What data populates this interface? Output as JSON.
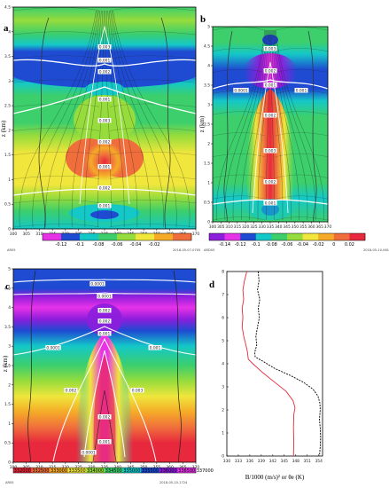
{
  "chart_data": [
    {
      "type": "heatmap",
      "panel_label": "a",
      "y_axis_label": "z (km)",
      "x_ticks": [
        "300",
        "305",
        "310",
        "315",
        "320",
        "325",
        "330",
        "335",
        "340",
        "345",
        "350",
        "355",
        "360",
        "365",
        "370"
      ],
      "y_ticks": [
        "0",
        "0.5",
        "1",
        "1.5",
        "2",
        "2.5",
        "3",
        "3.5",
        "4",
        "4.5"
      ],
      "ylim": [
        0,
        4.5
      ],
      "colorbar_ticks": [
        "-0.12",
        "-0.1",
        "-0.08",
        "-0.06",
        "-0.04",
        "-0.02"
      ],
      "colorbar_colors": [
        "#e832e8",
        "#1e4bd2",
        "#14c8c8",
        "#3ccf6c",
        "#96dc3c",
        "#f0e63c",
        "#f5aa28",
        "#f06e3c"
      ],
      "footer_left": "AR05",
      "footer_right": "2018-05-07-0705",
      "contour_labels": [
        "0.003",
        "0.001",
        "0.002",
        "0.001",
        "0.003",
        "0.002",
        "0.001",
        "0.002",
        "0.001"
      ]
    },
    {
      "type": "heatmap",
      "panel_label": "b",
      "y_axis_label": "z (km)",
      "x_ticks": [
        "300",
        "305",
        "310",
        "315",
        "320",
        "325",
        "330",
        "335",
        "340",
        "345",
        "350",
        "355",
        "360",
        "365",
        "370"
      ],
      "y_ticks": [
        "0",
        "0.5",
        "1",
        "1.5",
        "2",
        "2.5",
        "3",
        "3.5",
        "4",
        "4.5",
        "5"
      ],
      "ylim": [
        0,
        5
      ],
      "colorbar_ticks": [
        "-0.14",
        "-0.12",
        "-0.1",
        "-0.08",
        "-0.06",
        "-0.04",
        "-0.02",
        "0",
        "0.02"
      ],
      "colorbar_colors": [
        "#8c1edc",
        "#e832e8",
        "#1e4bd2",
        "#14c8c8",
        "#3ccf6c",
        "#96dc3c",
        "#f0e63c",
        "#f5aa28",
        "#f06e3c",
        "#e8283c"
      ],
      "footer_left": "ARD05",
      "footer_right": "2018-05-10-0611",
      "contour_labels": [
        "0.003",
        "0.002",
        "0.001",
        "0.0001",
        "0.001",
        "0.002",
        "0.003",
        "0.002",
        "0.001"
      ]
    },
    {
      "type": "heatmap",
      "panel_label": "c",
      "y_axis_label": "z (km)",
      "x_ticks": [
        "300",
        "305",
        "310",
        "315",
        "320",
        "325",
        "330",
        "335",
        "340",
        "345",
        "350",
        "355",
        "360",
        "365",
        "370"
      ],
      "y_ticks": [
        "0",
        "0.5",
        "1",
        "1.5",
        "2",
        "2.5",
        "3",
        "3.5",
        "4",
        "4.5",
        "5"
      ],
      "ylim": [
        0,
        5
      ],
      "colorbar_ticks": [
        "332000",
        "332500",
        "333000",
        "333500",
        "334000",
        "334500",
        "335000",
        "335500",
        "336000",
        "336500",
        "337000"
      ],
      "colorbar_colors": [
        "#e8283c",
        "#f06e3c",
        "#f5aa28",
        "#f0e63c",
        "#96dc3c",
        "#3ccf6c",
        "#14c8c8",
        "#1e4bd2",
        "#8c1edc",
        "#e832e8"
      ],
      "footer_left": "AR05",
      "footer_right": "2018-05-10-1724",
      "contour_labels": [
        "0.0001",
        "0.0001",
        "0.002",
        "0.0001",
        "0.001",
        "0.002",
        "0.001",
        "0.002",
        "0.003",
        "0.002",
        "0.001",
        "0.0001"
      ]
    },
    {
      "type": "line",
      "panel_label": "d",
      "x_ticks": [
        "330",
        "333",
        "336",
        "339",
        "342",
        "345",
        "348",
        "351",
        "354"
      ],
      "y_ticks": [
        "0",
        "1",
        "2",
        "3",
        "4",
        "5",
        "6",
        "7",
        "8"
      ],
      "xlim": [
        330,
        355
      ],
      "ylim": [
        0,
        8
      ],
      "xlabel": "B/1000 (m/s)² or θe (K)",
      "series": [
        {
          "style": "dashed-black",
          "color": "#000000",
          "points": [
            [
              338.2,
              8.0
            ],
            [
              338.4,
              7.6
            ],
            [
              338.0,
              7.2
            ],
            [
              338.6,
              6.8
            ],
            [
              338.2,
              6.4
            ],
            [
              338.5,
              6.0
            ],
            [
              338.0,
              5.6
            ],
            [
              337.6,
              5.2
            ],
            [
              337.8,
              4.8
            ],
            [
              337.3,
              4.5
            ],
            [
              337.4,
              4.3
            ],
            [
              339.5,
              4.1
            ],
            [
              342.5,
              3.8
            ],
            [
              346.5,
              3.5
            ],
            [
              350.0,
              3.2
            ],
            [
              352.5,
              2.9
            ],
            [
              353.8,
              2.6
            ],
            [
              354.3,
              2.3
            ],
            [
              354.4,
              2.0
            ],
            [
              354.2,
              1.6
            ],
            [
              354.4,
              1.2
            ],
            [
              354.5,
              0.8
            ],
            [
              354.4,
              0.4
            ],
            [
              354.2,
              0.0
            ]
          ]
        },
        {
          "style": "solid-red",
          "color": "#e8283c",
          "points": [
            [
              335.2,
              8.0
            ],
            [
              334.6,
              7.6
            ],
            [
              334.2,
              7.2
            ],
            [
              334.4,
              6.8
            ],
            [
              334.0,
              6.4
            ],
            [
              334.2,
              6.0
            ],
            [
              334.0,
              5.6
            ],
            [
              334.4,
              5.2
            ],
            [
              335.0,
              4.8
            ],
            [
              335.4,
              4.5
            ],
            [
              335.6,
              4.2
            ],
            [
              336.8,
              4.0
            ],
            [
              339.5,
              3.6
            ],
            [
              342.5,
              3.2
            ],
            [
              345.5,
              2.8
            ],
            [
              347.3,
              2.4
            ],
            [
              347.8,
              2.1
            ],
            [
              347.5,
              1.8
            ],
            [
              347.4,
              1.2
            ],
            [
              347.5,
              0.6
            ],
            [
              347.4,
              0.0
            ]
          ]
        }
      ]
    }
  ]
}
